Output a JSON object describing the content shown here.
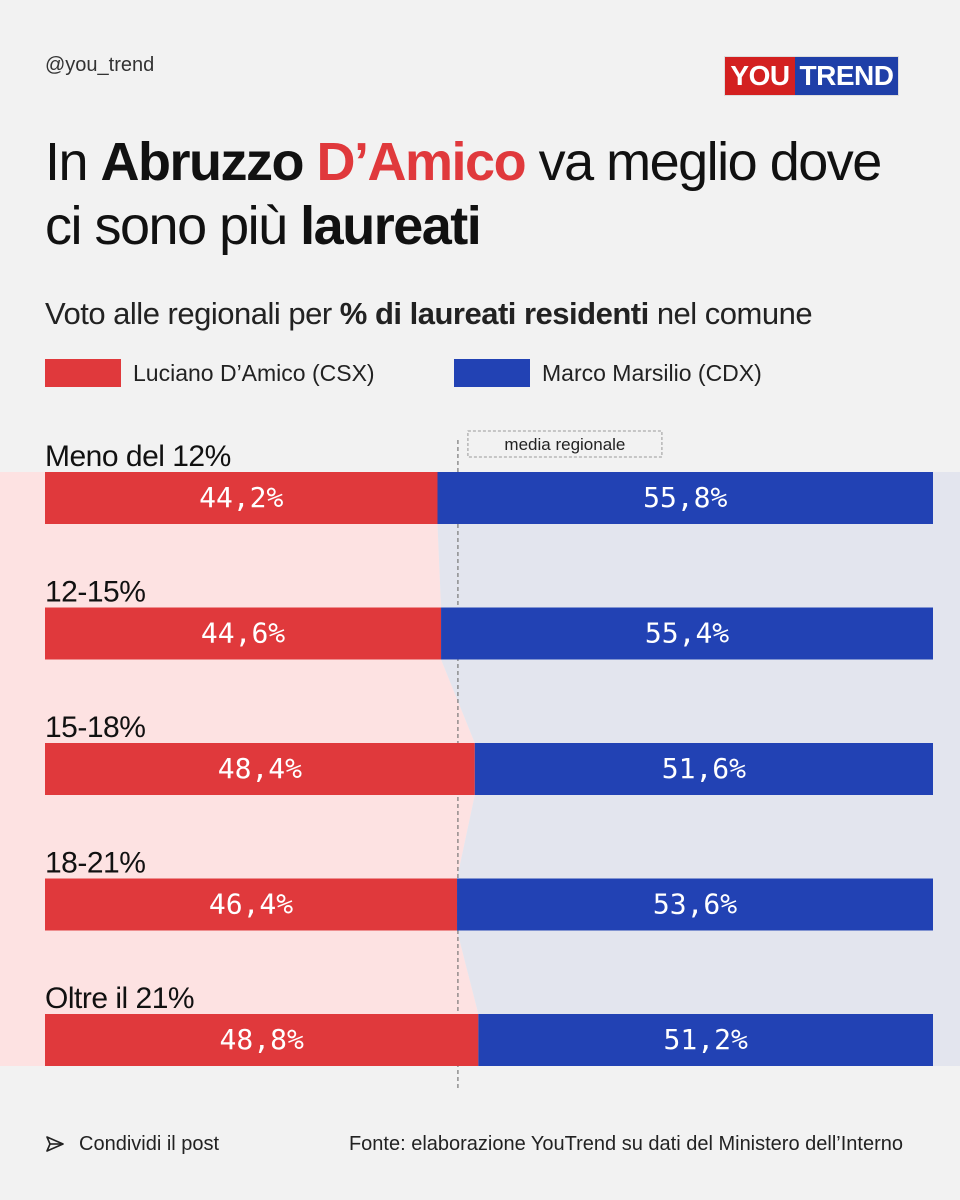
{
  "header": {
    "handle": "@you_trend",
    "logo_you": "YOU",
    "logo_trend": "TREND"
  },
  "headline": {
    "part1": "In ",
    "part2": "Abruzzo",
    "part3": " ",
    "part4": "D’Amico",
    "part5": " va meglio dove ci sono più ",
    "part6": "laureati"
  },
  "subtitle": {
    "part1": "Voto alle regionali per ",
    "part2": "% di laureati residenti",
    "part3": " nel comune"
  },
  "colors": {
    "csx": "#e0393c",
    "cdx": "#2242b4",
    "csx_bg": "#fde2e2",
    "cdx_bg": "#e3e5ee",
    "background": "#f2f2f2"
  },
  "chart_data": {
    "type": "bar",
    "orientation": "horizontal-stacked-100",
    "categories": [
      "Meno del 12%",
      "12-15%",
      "15-18%",
      "18-21%",
      "Oltre il 21%"
    ],
    "series": [
      {
        "name": "Luciano D’Amico (CSX)",
        "values": [
          44.2,
          44.6,
          48.4,
          46.4,
          48.8
        ],
        "labels": [
          "44,2%",
          "44,6%",
          "48,4%",
          "46,4%",
          "48,8%"
        ]
      },
      {
        "name": "Marco Marsilio (CDX)",
        "values": [
          55.8,
          55.4,
          51.6,
          53.6,
          51.2
        ],
        "labels": [
          "55,8%",
          "55,4%",
          "51,6%",
          "53,6%",
          "51,2%"
        ]
      }
    ],
    "reference_line": {
      "label": "media regionale",
      "value": 46.5
    },
    "xlim": [
      0,
      100
    ],
    "legend_position": "top"
  },
  "footer": {
    "share": "Condividi il post",
    "source": "Fonte: elaborazione YouTrend su dati del Ministero dell’Interno"
  }
}
